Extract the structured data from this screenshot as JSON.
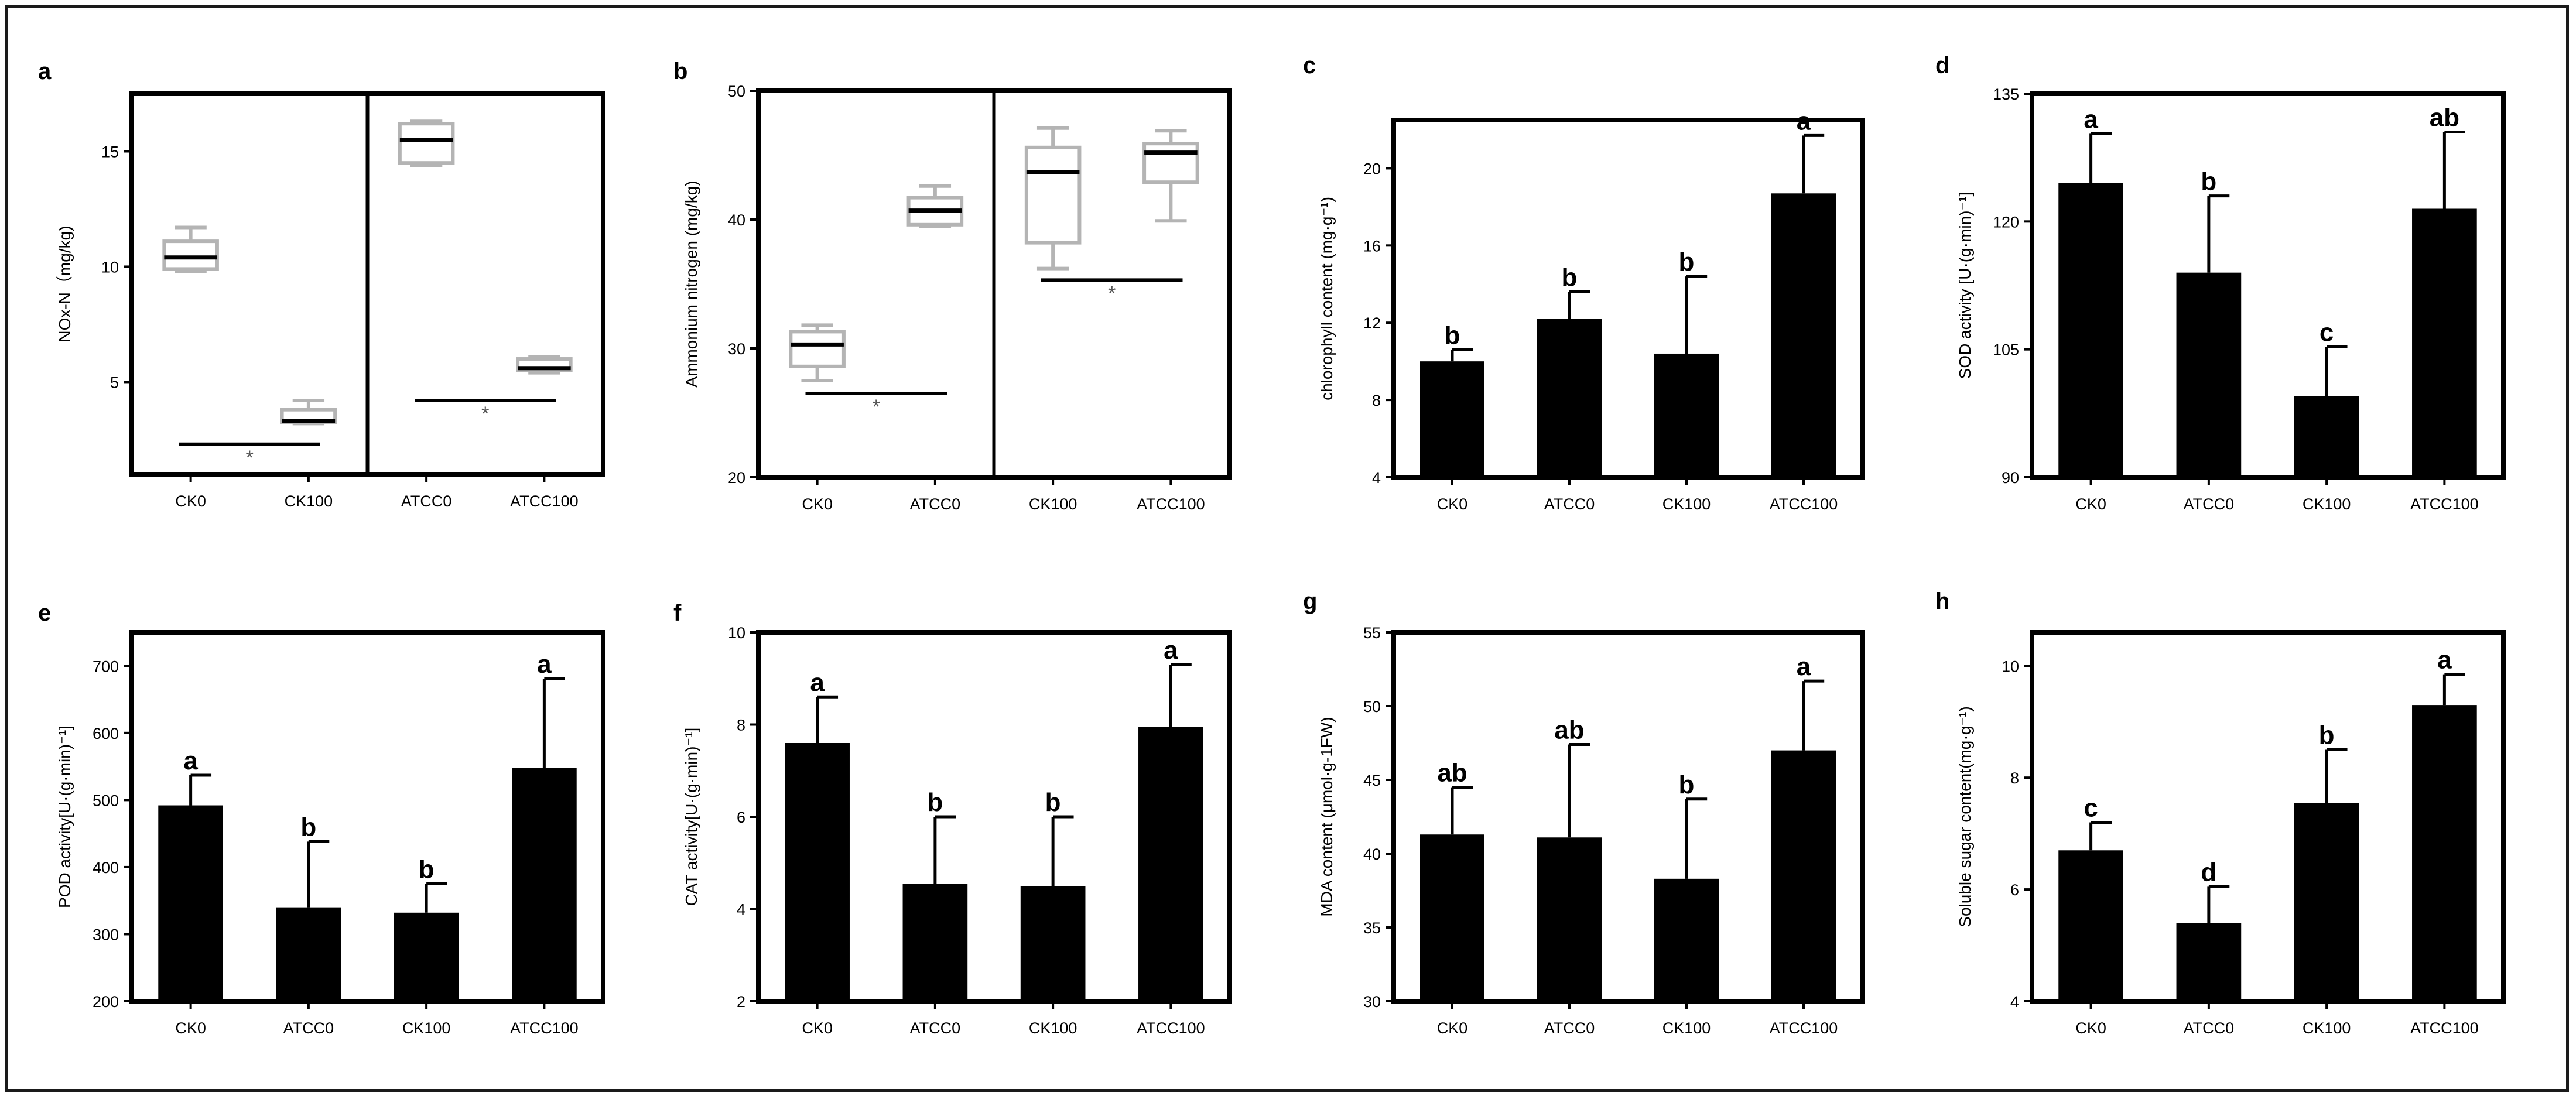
{
  "figure": {
    "background": "#ffffff"
  },
  "chart_data": [
    {
      "panel": "a",
      "type": "box",
      "ylabel": "NOx-N（mg/kg)",
      "yticks": [
        5,
        10,
        15
      ],
      "ylim": [
        1,
        17.5
      ],
      "categories": [
        "CK0",
        "CK100",
        "ATCC0",
        "ATCC100"
      ],
      "boxes": [
        {
          "min": 9.8,
          "q1": 9.9,
          "median": 10.4,
          "q3": 11.1,
          "max": 11.7
        },
        {
          "min": 3.2,
          "q1": 3.25,
          "median": 3.3,
          "q3": 3.8,
          "max": 4.2
        },
        {
          "min": 14.4,
          "q1": 14.5,
          "median": 15.5,
          "q3": 16.2,
          "max": 16.3
        },
        {
          "min": 5.4,
          "q1": 5.5,
          "median": 5.6,
          "q3": 6.0,
          "max": 6.1
        }
      ],
      "divider_after": 1,
      "brackets": [
        {
          "from": 0,
          "to": 1,
          "y": 2.3,
          "label": "*"
        },
        {
          "from": 2,
          "to": 3,
          "y": 4.2,
          "label": "*"
        }
      ]
    },
    {
      "panel": "b",
      "type": "box",
      "ylabel": "Ammonium nitrogen (mg/kg)",
      "yticks": [
        20,
        30,
        40,
        50
      ],
      "ylim": [
        20,
        50
      ],
      "categories": [
        "CK0",
        "ATCC0",
        "CK100",
        "ATCC100"
      ],
      "boxes": [
        {
          "min": 27.5,
          "q1": 28.6,
          "median": 30.3,
          "q3": 31.3,
          "max": 31.8
        },
        {
          "min": 39.5,
          "q1": 39.6,
          "median": 40.7,
          "q3": 41.7,
          "max": 42.6
        },
        {
          "min": 36.2,
          "q1": 38.2,
          "median": 43.7,
          "q3": 45.6,
          "max": 47.1
        },
        {
          "min": 39.9,
          "q1": 42.9,
          "median": 45.2,
          "q3": 45.9,
          "max": 46.9
        }
      ],
      "divider_after": 1,
      "brackets": [
        {
          "from": 0,
          "to": 1,
          "y": 26.5,
          "label": "*"
        },
        {
          "from": 2,
          "to": 3,
          "y": 35.3,
          "label": "*"
        }
      ]
    },
    {
      "panel": "c",
      "type": "bar",
      "ylabel": "chlorophyll content (mg·g⁻¹)",
      "yticks": [
        4,
        8,
        12,
        16,
        20
      ],
      "ylim": [
        4,
        22.5
      ],
      "categories": [
        "CK0",
        "ATCC0",
        "CK100",
        "ATCC100"
      ],
      "values": [
        10.0,
        12.2,
        10.4,
        18.7
      ],
      "errors": [
        0.6,
        1.4,
        4.0,
        3.0
      ],
      "letters": [
        "b",
        "b",
        "b",
        "a"
      ]
    },
    {
      "panel": "d",
      "type": "bar",
      "ylabel": "SOD activity [U·(g·min)⁻¹]",
      "yticks": [
        90,
        105,
        120,
        135
      ],
      "ylim": [
        90,
        135
      ],
      "categories": [
        "CK0",
        "ATCC0",
        "CK100",
        "ATCC100"
      ],
      "values": [
        124.5,
        114.0,
        99.5,
        121.5
      ],
      "errors": [
        5.8,
        9.0,
        5.8,
        9.0
      ],
      "letters": [
        "a",
        "b",
        "c",
        "ab"
      ]
    },
    {
      "panel": "e",
      "type": "bar",
      "ylabel": "POD activity[U·(g·min)⁻¹]",
      "yticks": [
        200,
        300,
        400,
        500,
        600,
        700
      ],
      "ylim": [
        200,
        750
      ],
      "categories": [
        "CK0",
        "ATCC0",
        "CK100",
        "ATCC100"
      ],
      "values": [
        492,
        340,
        332,
        548
      ],
      "errors": [
        45,
        98,
        43,
        133
      ],
      "letters": [
        "a",
        "b",
        "b",
        "a"
      ]
    },
    {
      "panel": "f",
      "type": "bar",
      "ylabel": "CAT activity[U·(g·min)⁻¹]",
      "yticks": [
        2,
        4,
        6,
        8,
        10
      ],
      "ylim": [
        2,
        10
      ],
      "categories": [
        "CK0",
        "ATCC0",
        "CK100",
        "ATCC100"
      ],
      "values": [
        7.6,
        4.55,
        4.5,
        7.95
      ],
      "errors": [
        1.0,
        1.45,
        1.5,
        1.35
      ],
      "letters": [
        "a",
        "b",
        "b",
        "a"
      ]
    },
    {
      "panel": "g",
      "type": "bar",
      "ylabel": "MDA content (μmol·g-1FW)",
      "yticks": [
        30,
        35,
        40,
        45,
        50,
        55
      ],
      "ylim": [
        30,
        55
      ],
      "categories": [
        "CK0",
        "ATCC0",
        "CK100",
        "ATCC100"
      ],
      "values": [
        41.3,
        41.1,
        38.3,
        47.0
      ],
      "errors": [
        3.2,
        6.3,
        5.4,
        4.7
      ],
      "letters": [
        "ab",
        "ab",
        "b",
        "a"
      ]
    },
    {
      "panel": "h",
      "type": "bar",
      "ylabel": "Soluble sugar content(mg·g⁻¹)",
      "yticks": [
        4,
        6,
        8,
        10
      ],
      "ylim": [
        4,
        10.6
      ],
      "categories": [
        "CK0",
        "ATCC0",
        "CK100",
        "ATCC100"
      ],
      "values": [
        6.7,
        5.4,
        7.55,
        9.3
      ],
      "errors": [
        0.5,
        0.65,
        0.95,
        0.55
      ],
      "letters": [
        "c",
        "d",
        "b",
        "a"
      ]
    }
  ]
}
